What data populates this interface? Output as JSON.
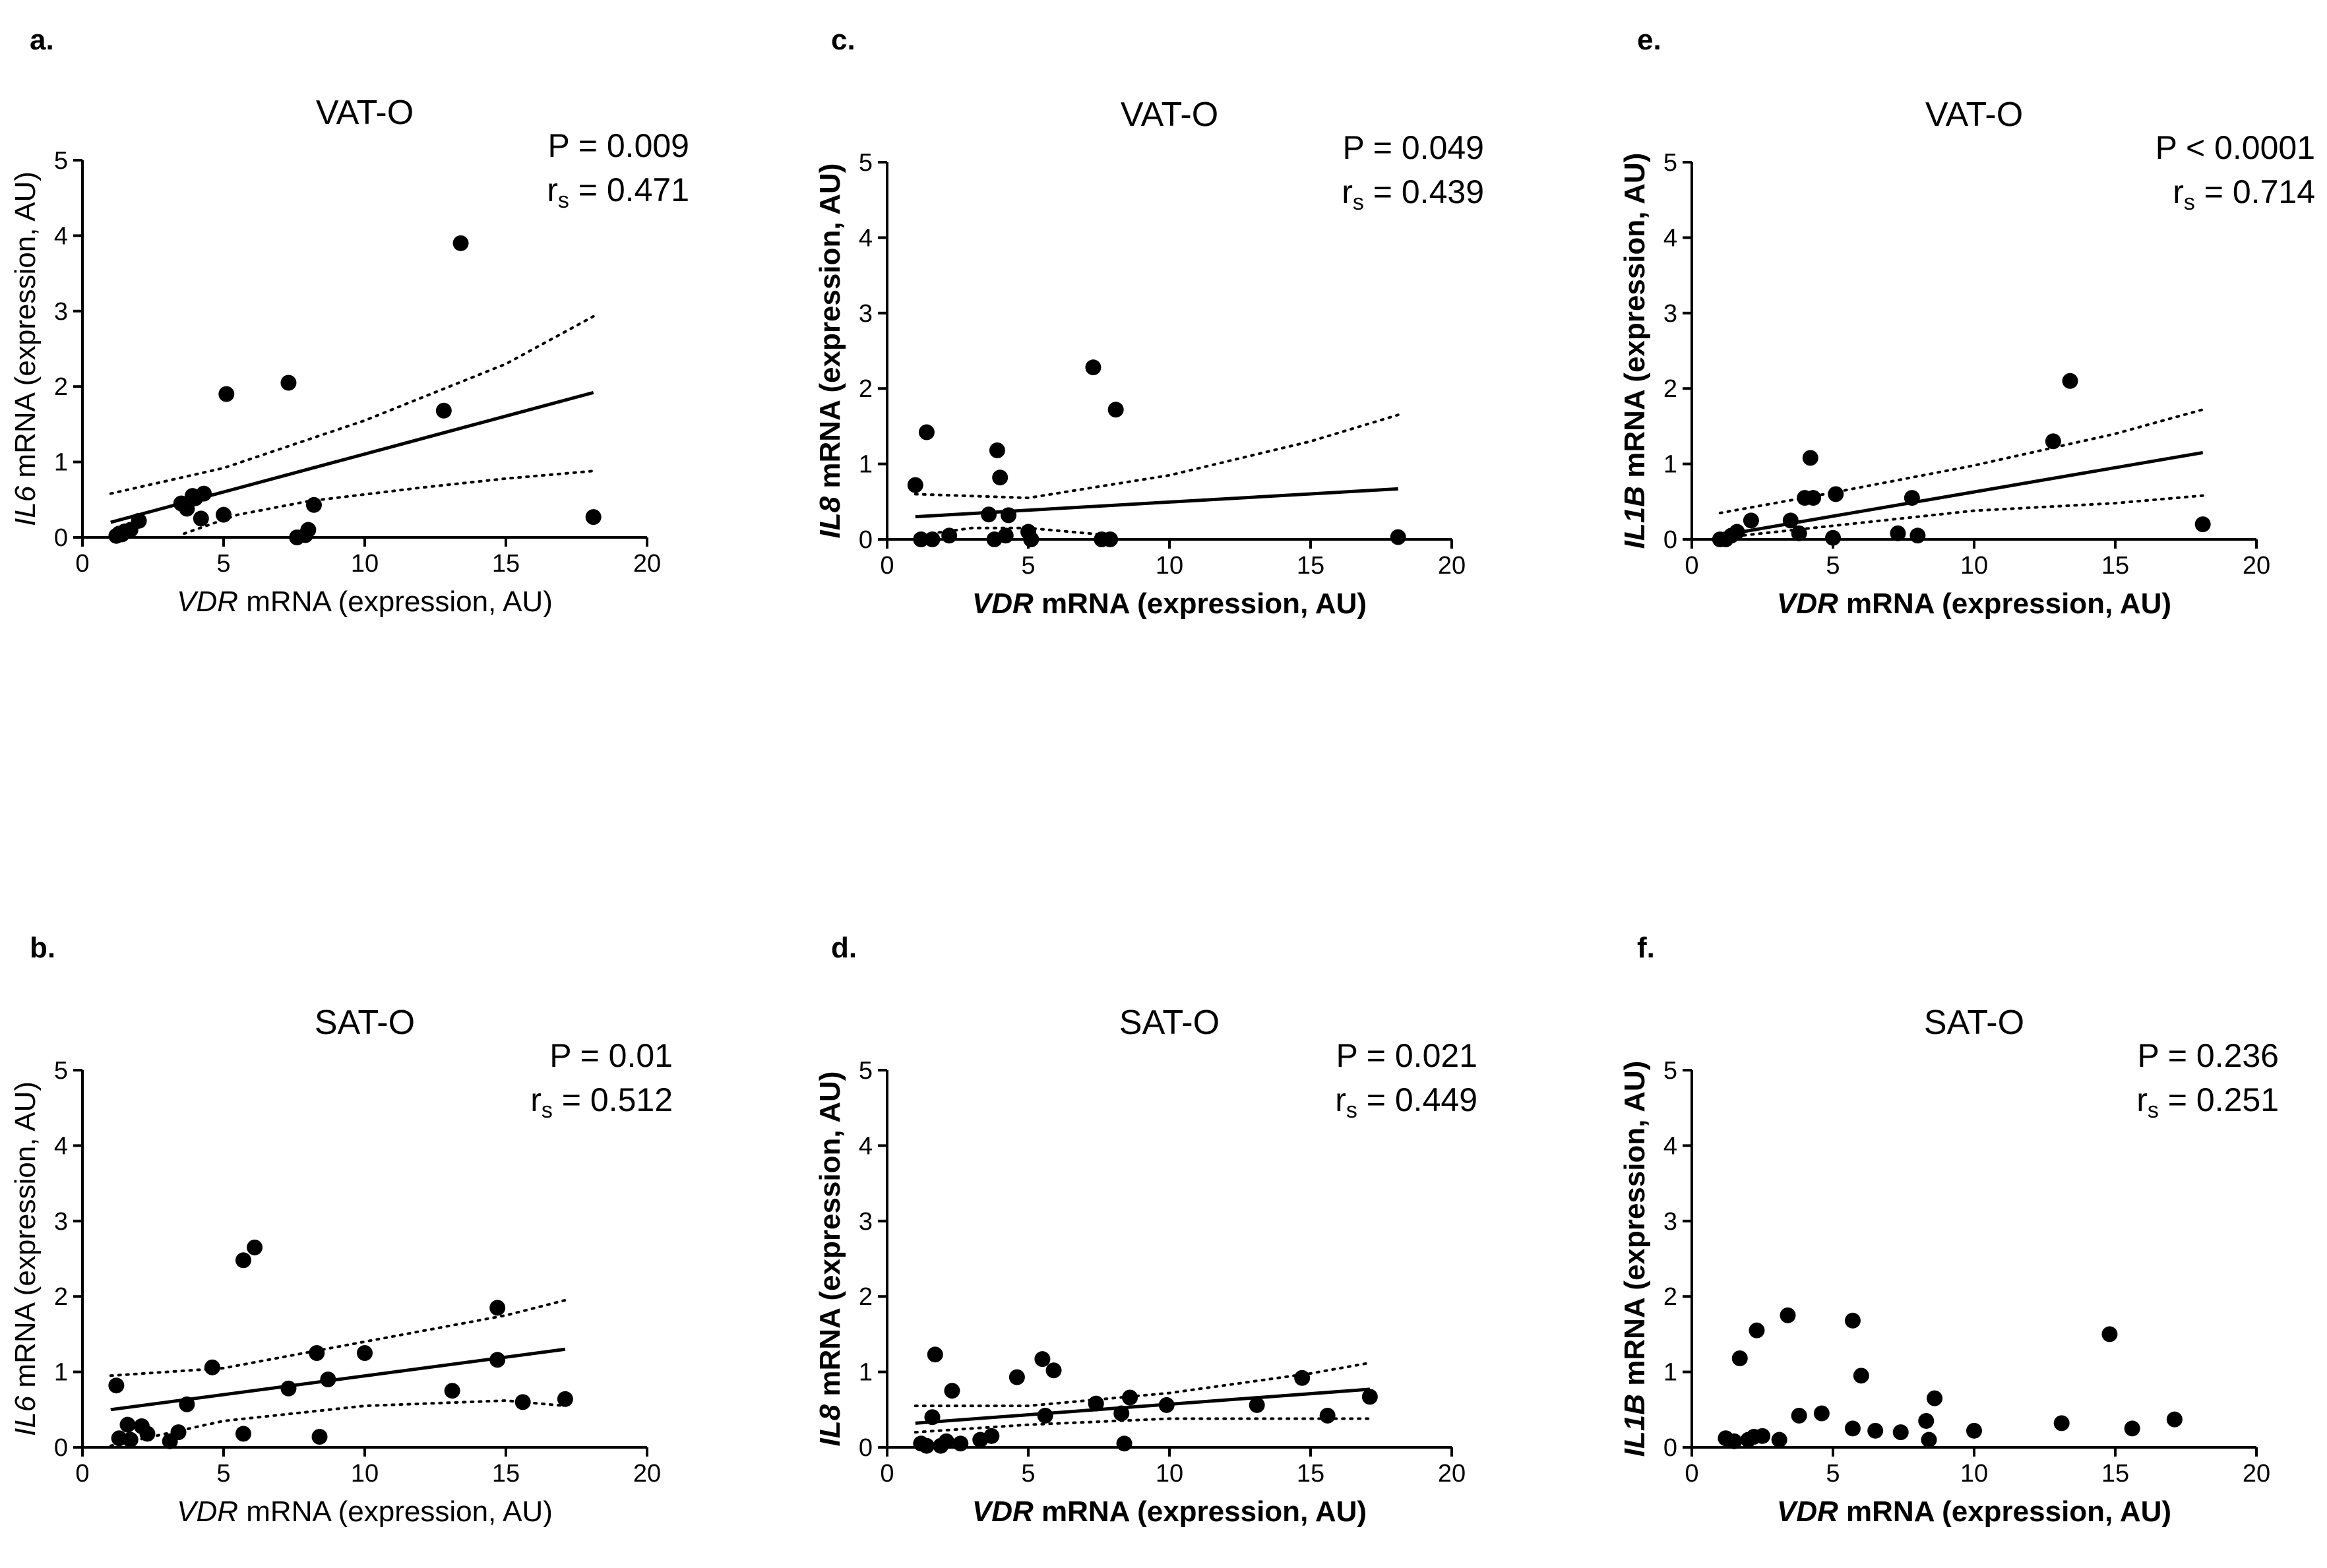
{
  "chart_data": [
    {
      "panel": "a.",
      "type": "scatter",
      "title": "VAT-O",
      "stats": {
        "p": "P = 0.009",
        "rs_label": "r",
        "rs_sub": "s",
        "rs_value": " = 0.471"
      },
      "xlabel": {
        "italic": "VDR",
        "rest": " mRNA (expression, AU)"
      },
      "ylabel": {
        "italic": "IL6",
        "rest": " mRNA (expression, AU)"
      },
      "xlim": [
        0,
        20
      ],
      "ylim": [
        0,
        5
      ],
      "xticks": [
        "0",
        "5",
        "10",
        "15",
        "20"
      ],
      "yticks": [
        "0",
        "1",
        "2",
        "3",
        "4",
        "5"
      ],
      "points": [
        [
          1.2,
          0.02
        ],
        [
          1.3,
          0.05
        ],
        [
          1.4,
          0.04
        ],
        [
          1.5,
          0.08
        ],
        [
          1.7,
          0.1
        ],
        [
          2.0,
          0.22
        ],
        [
          3.5,
          0.45
        ],
        [
          3.7,
          0.38
        ],
        [
          3.9,
          0.55
        ],
        [
          4.0,
          0.52
        ],
        [
          4.2,
          0.25
        ],
        [
          4.3,
          0.58
        ],
        [
          5.0,
          0.3
        ],
        [
          5.1,
          1.9
        ],
        [
          7.3,
          2.05
        ],
        [
          7.6,
          0.0
        ],
        [
          7.9,
          0.03
        ],
        [
          8.0,
          0.1
        ],
        [
          8.2,
          0.43
        ],
        [
          12.8,
          1.68
        ],
        [
          13.4,
          3.9
        ],
        [
          18.1,
          0.27
        ]
      ],
      "fit": [
        [
          1.0,
          0.2
        ],
        [
          18.1,
          1.92
        ]
      ],
      "ci_upper": [
        [
          1.0,
          0.58
        ],
        [
          5.0,
          0.92
        ],
        [
          10.0,
          1.55
        ],
        [
          15.0,
          2.3
        ],
        [
          18.1,
          2.93
        ]
      ],
      "ci_lower": [
        [
          3.6,
          0.05
        ],
        [
          5.5,
          0.3
        ],
        [
          8.0,
          0.48
        ],
        [
          12.0,
          0.66
        ],
        [
          15.0,
          0.78
        ],
        [
          18.1,
          0.88
        ]
      ]
    },
    {
      "panel": "c.",
      "type": "scatter",
      "title": "VAT-O",
      "stats": {
        "p": "P = 0.049",
        "rs_label": "r",
        "rs_sub": "s",
        "rs_value": " = 0.439"
      },
      "xlabel": {
        "italic": "VDR",
        "rest": " mRNA (expression, AU)"
      },
      "ylabel": {
        "italic": "IL8",
        "rest": " mRNA (expression, AU)"
      },
      "xlim": [
        0,
        20
      ],
      "ylim": [
        0,
        5
      ],
      "xticks": [
        "0",
        "5",
        "10",
        "15",
        "20"
      ],
      "yticks": [
        "0",
        "1",
        "2",
        "3",
        "4",
        "5"
      ],
      "points": [
        [
          1.0,
          0.72
        ],
        [
          1.2,
          0.0
        ],
        [
          1.4,
          1.42
        ],
        [
          1.6,
          0.0
        ],
        [
          2.2,
          0.05
        ],
        [
          3.6,
          0.33
        ],
        [
          3.8,
          0.0
        ],
        [
          3.9,
          1.18
        ],
        [
          4.0,
          0.82
        ],
        [
          4.2,
          0.05
        ],
        [
          4.3,
          0.32
        ],
        [
          5.0,
          0.1
        ],
        [
          5.1,
          0.0
        ],
        [
          7.3,
          2.28
        ],
        [
          7.6,
          0.0
        ],
        [
          7.9,
          0.0
        ],
        [
          8.1,
          1.72
        ],
        [
          18.1,
          0.03
        ]
      ],
      "fit": [
        [
          1.0,
          0.3
        ],
        [
          18.1,
          0.67
        ]
      ],
      "ci_upper": [
        [
          1.0,
          0.6
        ],
        [
          5.0,
          0.55
        ],
        [
          10.0,
          0.85
        ],
        [
          15.0,
          1.3
        ],
        [
          18.1,
          1.65
        ]
      ],
      "ci_lower": [
        [
          1.0,
          0.05
        ],
        [
          3.0,
          0.15
        ],
        [
          5.0,
          0.15
        ],
        [
          8.0,
          0.05
        ]
      ]
    },
    {
      "panel": "e.",
      "type": "scatter",
      "title": "VAT-O",
      "stats": {
        "p": "P < 0.0001",
        "rs_label": "r",
        "rs_sub": "s",
        "rs_value": " = 0.714"
      },
      "xlabel": {
        "italic": "VDR",
        "rest": " mRNA (expression, AU)"
      },
      "ylabel": {
        "italic": "IL1B",
        "rest": " mRNA (expression, AU)"
      },
      "xlim": [
        0,
        20
      ],
      "ylim": [
        0,
        5
      ],
      "xticks": [
        "0",
        "5",
        "10",
        "15",
        "20"
      ],
      "yticks": [
        "0",
        "1",
        "2",
        "3",
        "4",
        "5"
      ],
      "points": [
        [
          1.0,
          0.0
        ],
        [
          1.2,
          0.0
        ],
        [
          1.4,
          0.05
        ],
        [
          1.6,
          0.1
        ],
        [
          2.1,
          0.25
        ],
        [
          3.5,
          0.25
        ],
        [
          3.8,
          0.08
        ],
        [
          4.0,
          0.55
        ],
        [
          4.2,
          1.08
        ],
        [
          4.3,
          0.55
        ],
        [
          5.0,
          0.02
        ],
        [
          5.1,
          0.6
        ],
        [
          7.3,
          0.08
        ],
        [
          7.8,
          0.55
        ],
        [
          8.0,
          0.05
        ],
        [
          12.8,
          1.3
        ],
        [
          13.4,
          2.1
        ],
        [
          18.1,
          0.2
        ]
      ],
      "fit": [
        [
          1.0,
          0.05
        ],
        [
          18.1,
          1.15
        ]
      ],
      "ci_upper": [
        [
          1.0,
          0.35
        ],
        [
          5.0,
          0.62
        ],
        [
          10.0,
          0.98
        ],
        [
          15.0,
          1.4
        ],
        [
          18.1,
          1.72
        ]
      ],
      "ci_lower": [
        [
          1.0,
          0.02
        ],
        [
          5.0,
          0.18
        ],
        [
          10.0,
          0.38
        ],
        [
          15.0,
          0.48
        ],
        [
          18.1,
          0.58
        ]
      ]
    },
    {
      "panel": "b.",
      "type": "scatter",
      "title": "SAT-O",
      "stats": {
        "p": "P = 0.01",
        "rs_label": "r",
        "rs_sub": "s",
        "rs_value": " = 0.512"
      },
      "xlabel": {
        "italic": "VDR",
        "rest": " mRNA (expression, AU)"
      },
      "ylabel": {
        "italic": "IL6",
        "rest": " mRNA (expression, AU)"
      },
      "xlim": [
        0,
        20
      ],
      "ylim": [
        0,
        5
      ],
      "xticks": [
        "0",
        "5",
        "10",
        "15",
        "20"
      ],
      "yticks": [
        "0",
        "1",
        "2",
        "3",
        "4",
        "5"
      ],
      "points": [
        [
          1.2,
          0.82
        ],
        [
          1.3,
          0.12
        ],
        [
          1.6,
          0.3
        ],
        [
          1.7,
          0.1
        ],
        [
          2.1,
          0.28
        ],
        [
          2.3,
          0.18
        ],
        [
          3.1,
          0.08
        ],
        [
          3.4,
          0.2
        ],
        [
          3.7,
          0.57
        ],
        [
          4.6,
          1.06
        ],
        [
          5.7,
          0.18
        ],
        [
          5.7,
          2.48
        ],
        [
          6.1,
          2.65
        ],
        [
          7.3,
          0.78
        ],
        [
          8.3,
          1.25
        ],
        [
          8.4,
          0.14
        ],
        [
          8.7,
          0.9
        ],
        [
          10.0,
          1.25
        ],
        [
          13.1,
          0.75
        ],
        [
          14.7,
          1.16
        ],
        [
          14.7,
          1.85
        ],
        [
          15.6,
          0.6
        ],
        [
          17.1,
          0.64
        ]
      ],
      "fit": [
        [
          1.0,
          0.5
        ],
        [
          17.1,
          1.3
        ]
      ],
      "ci_upper": [
        [
          1.0,
          0.95
        ],
        [
          5.0,
          1.05
        ],
        [
          10.0,
          1.4
        ],
        [
          15.0,
          1.75
        ],
        [
          17.1,
          1.95
        ]
      ],
      "ci_lower": [
        [
          1.0,
          0.02
        ],
        [
          5.0,
          0.35
        ],
        [
          10.0,
          0.55
        ],
        [
          15.0,
          0.62
        ],
        [
          17.1,
          0.55
        ]
      ]
    },
    {
      "panel": "d.",
      "type": "scatter",
      "title": "SAT-O",
      "stats": {
        "p": "P = 0.021",
        "rs_label": "r",
        "rs_sub": "s",
        "rs_value": " = 0.449"
      },
      "xlabel": {
        "italic": "VDR",
        "rest": " mRNA (expression, AU)"
      },
      "ylabel": {
        "italic": "IL8",
        "rest": " mRNA (expression, AU)"
      },
      "xlim": [
        0,
        20
      ],
      "ylim": [
        0,
        5
      ],
      "xticks": [
        "0",
        "5",
        "10",
        "15",
        "20"
      ],
      "yticks": [
        "0",
        "1",
        "2",
        "3",
        "4",
        "5"
      ],
      "points": [
        [
          1.2,
          0.05
        ],
        [
          1.4,
          0.02
        ],
        [
          1.6,
          0.4
        ],
        [
          1.7,
          1.23
        ],
        [
          1.9,
          0.02
        ],
        [
          2.1,
          0.08
        ],
        [
          2.3,
          0.75
        ],
        [
          2.6,
          0.05
        ],
        [
          3.3,
          0.1
        ],
        [
          3.7,
          0.15
        ],
        [
          4.6,
          0.93
        ],
        [
          5.5,
          1.17
        ],
        [
          5.6,
          0.42
        ],
        [
          5.9,
          1.02
        ],
        [
          7.4,
          0.58
        ],
        [
          8.3,
          0.45
        ],
        [
          8.4,
          0.05
        ],
        [
          8.6,
          0.66
        ],
        [
          9.9,
          0.56
        ],
        [
          13.1,
          0.56
        ],
        [
          14.7,
          0.92
        ],
        [
          15.6,
          0.42
        ],
        [
          17.1,
          0.67
        ]
      ],
      "fit": [
        [
          1.0,
          0.32
        ],
        [
          17.1,
          0.77
        ]
      ],
      "ci_upper": [
        [
          1.0,
          0.55
        ],
        [
          5.0,
          0.55
        ],
        [
          10.0,
          0.72
        ],
        [
          15.0,
          0.98
        ],
        [
          17.1,
          1.12
        ]
      ],
      "ci_lower": [
        [
          1.0,
          0.2
        ],
        [
          5.0,
          0.3
        ],
        [
          10.0,
          0.38
        ],
        [
          15.0,
          0.38
        ],
        [
          17.1,
          0.38
        ]
      ]
    },
    {
      "panel": "f.",
      "type": "scatter",
      "title": "SAT-O",
      "stats": {
        "p": "P = 0.236",
        "rs_label": "r",
        "rs_sub": "s",
        "rs_value": " = 0.251"
      },
      "xlabel": {
        "italic": "VDR",
        "rest": " mRNA (expression, AU)"
      },
      "ylabel": {
        "italic": "IL1B",
        "rest": " mRNA (expression, AU)"
      },
      "xlim": [
        0,
        20
      ],
      "ylim": [
        0,
        5
      ],
      "xticks": [
        "0",
        "5",
        "10",
        "15",
        "20"
      ],
      "yticks": [
        "0",
        "1",
        "2",
        "3",
        "4",
        "5"
      ],
      "points": [
        [
          1.2,
          0.12
        ],
        [
          1.5,
          0.08
        ],
        [
          1.7,
          1.18
        ],
        [
          2.0,
          0.1
        ],
        [
          2.2,
          0.14
        ],
        [
          2.3,
          1.55
        ],
        [
          2.5,
          0.15
        ],
        [
          3.1,
          0.1
        ],
        [
          3.4,
          1.75
        ],
        [
          3.8,
          0.42
        ],
        [
          4.6,
          0.45
        ],
        [
          5.7,
          0.25
        ],
        [
          5.7,
          1.68
        ],
        [
          6.0,
          0.95
        ],
        [
          6.5,
          0.22
        ],
        [
          7.4,
          0.2
        ],
        [
          8.3,
          0.35
        ],
        [
          8.4,
          0.1
        ],
        [
          8.6,
          0.65
        ],
        [
          10.0,
          0.22
        ],
        [
          13.1,
          0.32
        ],
        [
          14.8,
          1.5
        ],
        [
          15.6,
          0.25
        ],
        [
          17.1,
          0.37
        ]
      ]
    }
  ]
}
